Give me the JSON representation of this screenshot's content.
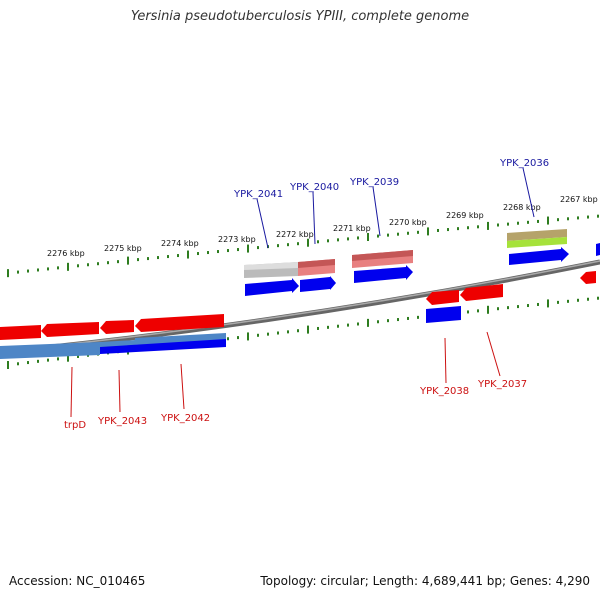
{
  "title": "Yersinia pseudotuberculosis YPIII, complete genome",
  "footer": {
    "accession": "Accession: NC_010465",
    "stats": "Topology: circular; Length: 4,689,441 bp; Genes: 4,290"
  },
  "axis_labels": [
    "2276 kbp",
    "2275 kbp",
    "2274 kbp",
    "2273 kbp",
    "2272 kbp",
    "2271 kbp",
    "2270 kbp",
    "2269 kbp",
    "2268 kbp",
    "2267 kbp"
  ],
  "gene_labels_top": [
    "YPK_2041",
    "YPK_2040",
    "YPK_2039",
    "YPK_2036"
  ],
  "gene_labels_bottom": [
    "trpD",
    "YPK_2043",
    "YPK_2042",
    "YPK_2038",
    "YPK_2037"
  ],
  "colors": {
    "backbone": "#7a7a7a",
    "tick": "#2e7d1f",
    "forward_cds": "#0000ee",
    "reverse_cds": "#ee0000",
    "top_label": "#1a1aa0",
    "bottom_label": "#cc1111",
    "pink_gene": "#e88080",
    "gray_gene": "#bbbbbb",
    "olive_gene": "#b5a36a",
    "lime_gene": "#a6e23a",
    "steel_blue": "#4e86c6"
  }
}
